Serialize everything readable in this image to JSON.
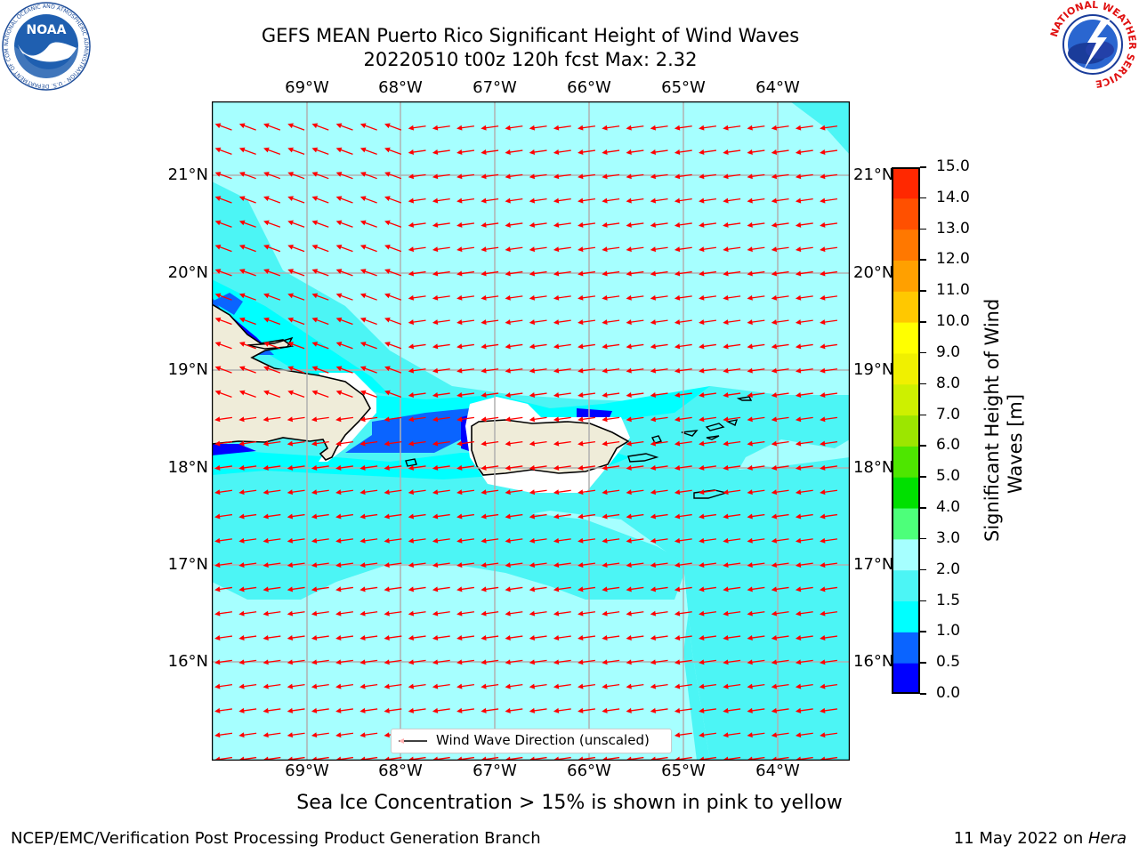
{
  "title": {
    "line1": "GEFS MEAN Puerto Rico Significant Height of Wind Waves",
    "line2": "20220510 t00z 120h fcst   Max: 2.32"
  },
  "map": {
    "lon_labels": [
      "69°W",
      "68°W",
      "67°W",
      "66°W",
      "65°W",
      "64°W"
    ],
    "lat_labels": [
      "21°N",
      "20°N",
      "19°N",
      "18°N",
      "17°N",
      "16°N"
    ],
    "legend_label": "Wind Wave Direction (unscaled)",
    "land_color": "#efecd9",
    "arrow_color": "#ff0000"
  },
  "colorbar": {
    "label_line1": "Significant Height of Wind",
    "label_line2": "Waves [m]",
    "ticks": [
      "15.0",
      "14.0",
      "13.0",
      "12.0",
      "11.0",
      "10.0",
      "9.0",
      "8.0",
      "7.0",
      "6.0",
      "5.0",
      "4.0",
      "3.0",
      "2.0",
      "1.5",
      "1.0",
      "0.5",
      "0.0"
    ],
    "colors": [
      "#0000ff",
      "#0a64ff",
      "#00ffff",
      "#4cf5f5",
      "#a6ffff",
      "#4dff7a",
      "#00e000",
      "#4ee600",
      "#9ce600",
      "#cdf000",
      "#f0f000",
      "#ffff00",
      "#ffc800",
      "#ffa000",
      "#ff7800",
      "#ff5000",
      "#ff2800"
    ]
  },
  "sea_ice_note": "Sea Ice Concentration > 15% is shown in pink to yellow",
  "footer": {
    "left": "NCEP/EMC/Verification Post Processing Product Generation Branch",
    "right_prefix": "11 May 2022 on ",
    "right_host": "Hera"
  },
  "logos": {
    "left": "NOAA",
    "left_ring": "NATIONAL OCEANIC AND ATMOSPHERIC ADMINISTRATION · U.S. DEPARTMENT OF COMMERCE",
    "right_ring": "NATIONAL WEATHER SERVICE"
  }
}
